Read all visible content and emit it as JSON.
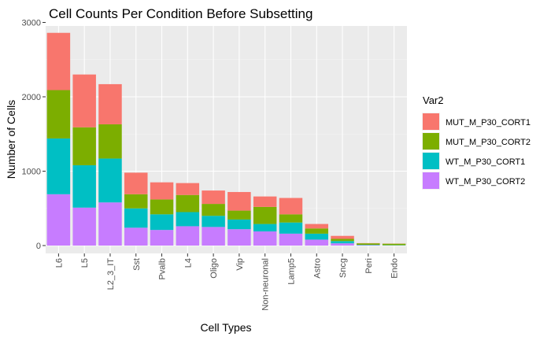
{
  "chart_data": {
    "type": "bar",
    "stacked": true,
    "title": "Cell Counts Per Condition Before Subsetting",
    "xlabel": "Cell Types",
    "ylabel": "Number of Cells",
    "ylim": [
      0,
      3100
    ],
    "yticks": [
      0,
      1000,
      2000,
      3000
    ],
    "grid": true,
    "legend_position": "right",
    "legend_title": "Var2",
    "categories": [
      "L6",
      "L5",
      "L2_3_IT",
      "Sst",
      "Pvalb",
      "L4",
      "Oligo",
      "Vip",
      "Non-neuronal",
      "Lamp5",
      "Astro",
      "Sncg",
      "Peri",
      "Endo"
    ],
    "series": [
      {
        "name": "MUT_M_P30_CORT1",
        "color": "#F8766D",
        "values": [
          770,
          710,
          540,
          290,
          230,
          160,
          180,
          250,
          140,
          220,
          60,
          40,
          3,
          2
        ]
      },
      {
        "name": "MUT_M_P30_CORT2",
        "color": "#7CAE00",
        "values": [
          650,
          510,
          460,
          190,
          200,
          230,
          160,
          120,
          230,
          110,
          70,
          30,
          20,
          20
        ]
      },
      {
        "name": "WT_M_P30_CORT1",
        "color": "#00BFC4",
        "values": [
          750,
          570,
          590,
          260,
          210,
          190,
          150,
          130,
          100,
          150,
          80,
          30,
          5,
          3
        ]
      },
      {
        "name": "WT_M_P30_CORT2",
        "color": "#C77CFF",
        "values": [
          690,
          510,
          580,
          240,
          210,
          260,
          250,
          220,
          190,
          160,
          80,
          30,
          5,
          2
        ]
      }
    ]
  }
}
